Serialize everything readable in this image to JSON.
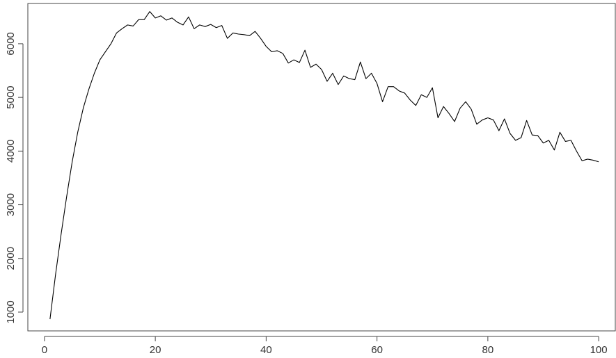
{
  "chart_data": {
    "type": "line",
    "title": "",
    "xlabel": "",
    "ylabel": "",
    "xlim": [
      -3,
      103
    ],
    "ylim": [
      650,
      6750
    ],
    "x_ticks": [
      0,
      20,
      40,
      60,
      80,
      100
    ],
    "x_tick_labels": [
      "0",
      "20",
      "40",
      "60",
      "80",
      "100"
    ],
    "y_ticks": [
      1000,
      2000,
      3000,
      4000,
      5000,
      6000
    ],
    "y_tick_labels": [
      "1000",
      "2000",
      "3000",
      "4000",
      "5000",
      "6000"
    ],
    "grid": false,
    "legend": "none",
    "colors": {
      "line": "#000000",
      "axis": "#444444",
      "text": "#333333"
    },
    "series": [
      {
        "x": [
          1,
          2,
          3,
          4,
          5,
          6,
          7,
          8,
          9,
          10,
          11,
          12,
          13,
          14,
          15,
          16,
          17,
          18,
          19,
          20,
          21,
          22,
          23,
          24,
          25,
          26,
          27,
          28,
          29,
          30,
          31,
          32,
          33,
          34,
          35,
          36,
          37,
          38,
          39,
          40,
          41,
          42,
          43,
          44,
          45,
          46,
          47,
          48,
          49,
          50,
          51,
          52,
          53,
          54,
          55,
          56,
          57,
          58,
          59,
          60,
          61,
          62,
          63,
          64,
          65,
          66,
          67,
          68,
          69,
          70,
          71,
          72,
          73,
          74,
          75,
          76,
          77,
          78,
          79,
          80,
          81,
          82,
          83,
          84,
          85,
          86,
          87,
          88,
          89,
          90,
          91,
          92,
          93,
          94,
          95,
          96,
          97,
          98,
          99,
          100
        ],
        "values": [
          870,
          1700,
          2450,
          3150,
          3800,
          4350,
          4800,
          5150,
          5450,
          5700,
          5850,
          6000,
          6200,
          6280,
          6350,
          6330,
          6450,
          6450,
          6600,
          6480,
          6520,
          6440,
          6480,
          6400,
          6350,
          6500,
          6280,
          6350,
          6320,
          6360,
          6300,
          6340,
          6100,
          6200,
          6180,
          6170,
          6150,
          6230,
          6100,
          5950,
          5850,
          5870,
          5820,
          5640,
          5700,
          5650,
          5880,
          5560,
          5620,
          5520,
          5300,
          5450,
          5240,
          5400,
          5350,
          5330,
          5660,
          5350,
          5450,
          5260,
          4920,
          5200,
          5200,
          5120,
          5080,
          4950,
          4850,
          5050,
          5000,
          5180,
          4620,
          4830,
          4700,
          4550,
          4800,
          4920,
          4780,
          4500,
          4580,
          4620,
          4580,
          4380,
          4600,
          4330,
          4200,
          4250,
          4570,
          4300,
          4290,
          4150,
          4200,
          4020,
          4350,
          4180,
          4200,
          4000,
          3820,
          3850,
          3830,
          3800
        ]
      }
    ]
  }
}
